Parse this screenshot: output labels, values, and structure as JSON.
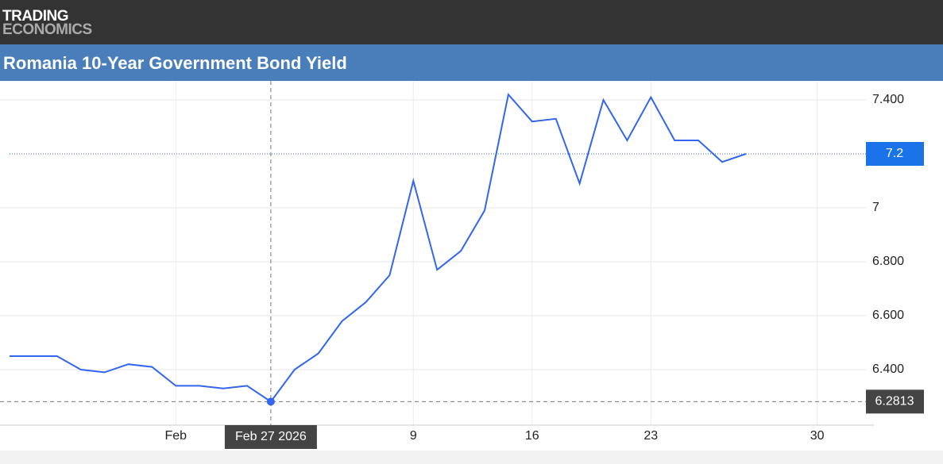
{
  "header": {
    "logo": [
      "TRADING",
      "ECONOMICS"
    ]
  },
  "chart_data": {
    "type": "line",
    "title": "Romania 10-Year Government Bond Yield",
    "categories": [
      null,
      null,
      null,
      null,
      null,
      null,
      null,
      "Feb",
      null,
      null,
      null,
      null,
      null,
      null,
      null,
      null,
      null,
      "9",
      null,
      null,
      null,
      null,
      "16",
      null,
      null,
      null,
      null,
      "23",
      null,
      null,
      null,
      null,
      null,
      null,
      "30"
    ],
    "series": [
      {
        "name": "Romania 10Y",
        "color": "#3366ee",
        "values": [
          6.45,
          6.45,
          6.45,
          6.4,
          6.39,
          6.42,
          6.41,
          6.34,
          6.34,
          6.33,
          6.34,
          6.2813,
          6.4,
          6.46,
          6.58,
          6.65,
          6.75,
          7.1,
          6.77,
          6.84,
          6.99,
          7.42,
          7.32,
          7.33,
          7.09,
          7.4,
          7.25,
          7.41,
          7.25,
          7.25,
          7.17,
          7.2,
          null,
          null,
          null
        ]
      }
    ],
    "ylim": [
      6.2,
      7.45
    ],
    "yticks": [
      {
        "value": 6.4,
        "label": "6.400"
      },
      {
        "value": 6.6,
        "label": "6.600"
      },
      {
        "value": 6.8,
        "label": "6.800"
      },
      7,
      {
        "value": 7.4,
        "label": "7.400"
      }
    ],
    "grid": true,
    "last_value": {
      "value": 7.2,
      "label": "7.2"
    },
    "crosshair": {
      "index": 11,
      "label": "Feb 27 2026",
      "value": 6.2813,
      "value_label": "6.2813"
    }
  }
}
